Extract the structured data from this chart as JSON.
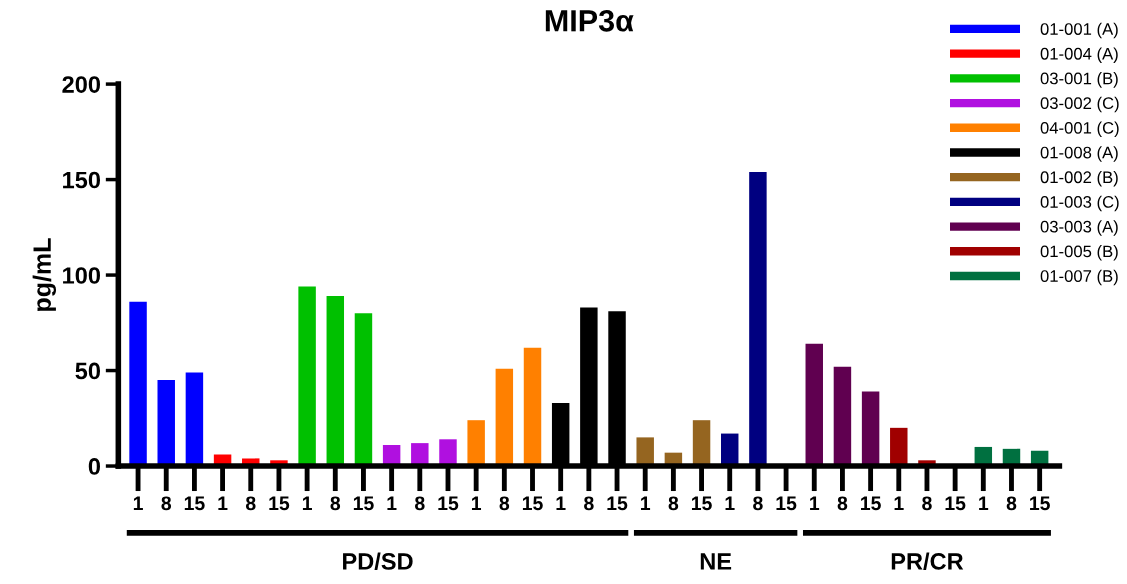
{
  "chart_data": {
    "type": "bar",
    "title": "MIP3α",
    "ylabel": "pg/mL",
    "categories": [
      "1",
      "8",
      "15",
      "1",
      "8",
      "15",
      "1",
      "8",
      "15",
      "1",
      "8",
      "15",
      "1",
      "8",
      "15",
      "1",
      "8",
      "15",
      "1",
      "8",
      "15",
      "1",
      "8",
      "15",
      "1",
      "8",
      "15",
      "1",
      "8",
      "15",
      "1",
      "8",
      "15"
    ],
    "series": [
      {
        "name": "01-001 (A)",
        "color": "#0000ff",
        "values": [
          86,
          45,
          49,
          null,
          null,
          null,
          null,
          null,
          null,
          null,
          null,
          null,
          null,
          null,
          null,
          null,
          null,
          null,
          null,
          null,
          null,
          null,
          null,
          null,
          null,
          null,
          null,
          null,
          null,
          null,
          null,
          null,
          null
        ]
      },
      {
        "name": "01-004 (A)",
        "color": "#ff0000",
        "values": [
          null,
          null,
          null,
          6,
          4,
          3,
          null,
          null,
          null,
          null,
          null,
          null,
          null,
          null,
          null,
          null,
          null,
          null,
          null,
          null,
          null,
          null,
          null,
          null,
          null,
          null,
          null,
          null,
          null,
          null,
          null,
          null,
          null
        ]
      },
      {
        "name": "03-001 (B)",
        "color": "#00c000",
        "values": [
          null,
          null,
          null,
          null,
          null,
          null,
          94,
          89,
          80,
          null,
          null,
          null,
          null,
          null,
          null,
          null,
          null,
          null,
          null,
          null,
          null,
          null,
          null,
          null,
          null,
          null,
          null,
          null,
          null,
          null,
          null,
          null,
          null
        ]
      },
      {
        "name": "03-002 (C)",
        "color": "#b010e0",
        "values": [
          null,
          null,
          null,
          null,
          null,
          null,
          null,
          null,
          null,
          11,
          12,
          14,
          null,
          null,
          null,
          null,
          null,
          null,
          null,
          null,
          null,
          null,
          null,
          null,
          null,
          null,
          null,
          null,
          null,
          null,
          null,
          null,
          null
        ]
      },
      {
        "name": "04-001 (C)",
        "color": "#ff8000",
        "values": [
          null,
          null,
          null,
          null,
          null,
          null,
          null,
          null,
          null,
          null,
          null,
          null,
          24,
          51,
          62,
          null,
          null,
          null,
          null,
          null,
          null,
          null,
          null,
          null,
          null,
          null,
          null,
          null,
          null,
          null,
          null,
          null,
          null
        ]
      },
      {
        "name": "01-008 (A)",
        "color": "#000000",
        "values": [
          null,
          null,
          null,
          null,
          null,
          null,
          null,
          null,
          null,
          null,
          null,
          null,
          null,
          null,
          null,
          33,
          83,
          81,
          null,
          null,
          null,
          null,
          null,
          null,
          null,
          null,
          null,
          null,
          null,
          null,
          null,
          null,
          null
        ]
      },
      {
        "name": "01-002 (B)",
        "color": "#956520",
        "values": [
          null,
          null,
          null,
          null,
          null,
          null,
          null,
          null,
          null,
          null,
          null,
          null,
          null,
          null,
          null,
          null,
          null,
          null,
          15,
          7,
          24,
          null,
          null,
          null,
          null,
          null,
          null,
          null,
          null,
          null,
          null,
          null,
          null
        ]
      },
      {
        "name": "01-003 (C)",
        "color": "#000080",
        "values": [
          null,
          null,
          null,
          null,
          null,
          null,
          null,
          null,
          null,
          null,
          null,
          null,
          null,
          null,
          null,
          null,
          null,
          null,
          null,
          null,
          null,
          17,
          154,
          null,
          null,
          null,
          null,
          null,
          null,
          null,
          null,
          null,
          null
        ]
      },
      {
        "name": "03-003 (A)",
        "color": "#600050",
        "values": [
          null,
          null,
          null,
          null,
          null,
          null,
          null,
          null,
          null,
          null,
          null,
          null,
          null,
          null,
          null,
          null,
          null,
          null,
          null,
          null,
          null,
          null,
          null,
          null,
          64,
          52,
          39,
          null,
          null,
          null,
          null,
          null,
          null
        ]
      },
      {
        "name": "01-005 (B)",
        "color": "#a00000",
        "values": [
          null,
          null,
          null,
          null,
          null,
          null,
          null,
          null,
          null,
          null,
          null,
          null,
          null,
          null,
          null,
          null,
          null,
          null,
          null,
          null,
          null,
          null,
          null,
          null,
          null,
          null,
          null,
          20,
          3,
          null,
          null,
          null,
          null
        ]
      },
      {
        "name": "01-007 (B)",
        "color": "#007040",
        "values": [
          null,
          null,
          null,
          null,
          null,
          null,
          null,
          null,
          null,
          null,
          null,
          null,
          null,
          null,
          null,
          null,
          null,
          null,
          null,
          null,
          null,
          null,
          null,
          null,
          null,
          null,
          null,
          null,
          null,
          null,
          10,
          9,
          8
        ]
      }
    ],
    "ylim": [
      0,
      200
    ],
    "yticks": [
      0,
      50,
      100,
      150,
      200
    ],
    "grid": false,
    "legend": "top right",
    "annotations": [
      "PD/SD",
      "NE",
      "PR/CR"
    ]
  }
}
